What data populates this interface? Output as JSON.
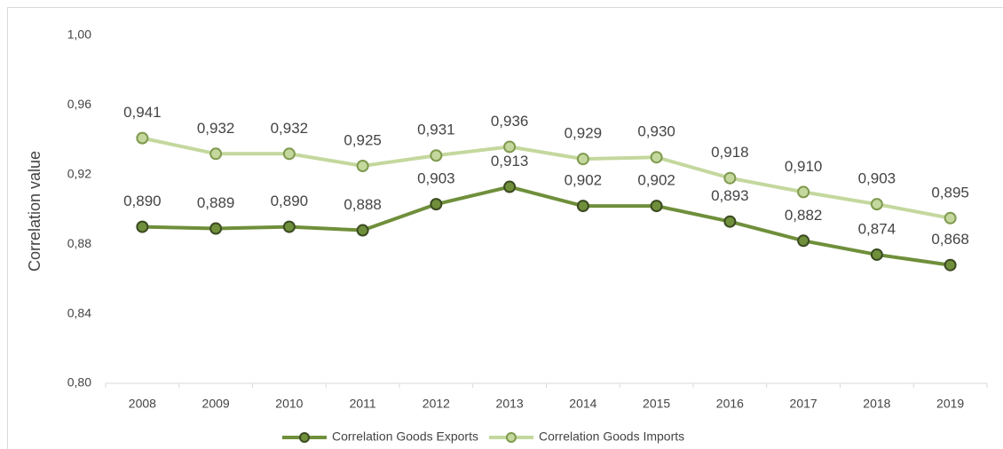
{
  "chart_data": {
    "type": "line",
    "y_label": "Correlation value",
    "categories": [
      "2008",
      "2009",
      "2010",
      "2011",
      "2012",
      "2013",
      "2014",
      "2015",
      "2016",
      "2017",
      "2018",
      "2019"
    ],
    "series": [
      {
        "name": "Correlation Goods Exports",
        "color": "#6f8f3b",
        "marker_edge": "#3b4a22",
        "values": [
          0.89,
          0.889,
          0.89,
          0.888,
          0.903,
          0.913,
          0.902,
          0.902,
          0.893,
          0.882,
          0.874,
          0.868
        ],
        "value_labels": [
          "0,890",
          "0,889",
          "0,890",
          "0,888",
          "0,903",
          "0,913",
          "0,902",
          "0,902",
          "0,893",
          "0,882",
          "0,874",
          "0,868"
        ]
      },
      {
        "name": "Correlation Goods Imports",
        "color": "#c4d89e",
        "marker_edge": "#7f9a4e",
        "values": [
          0.941,
          0.932,
          0.932,
          0.925,
          0.931,
          0.936,
          0.929,
          0.93,
          0.918,
          0.91,
          0.903,
          0.895
        ],
        "value_labels": [
          "0,941",
          "0,932",
          "0,932",
          "0,925",
          "0,931",
          "0,936",
          "0,929",
          "0,930",
          "0,918",
          "0,910",
          "0,903",
          "0,895"
        ]
      }
    ],
    "ylim": [
      0.8,
      1.0
    ],
    "yticks": [
      {
        "value": 0.8,
        "label": "0,80"
      },
      {
        "value": 0.84,
        "label": "0,84"
      },
      {
        "value": 0.88,
        "label": "0,88"
      },
      {
        "value": 0.92,
        "label": "0,92"
      },
      {
        "value": 0.96,
        "label": "0,96"
      },
      {
        "value": 1.0,
        "label": "1,00"
      }
    ],
    "grid": false,
    "legend": "bottom"
  }
}
